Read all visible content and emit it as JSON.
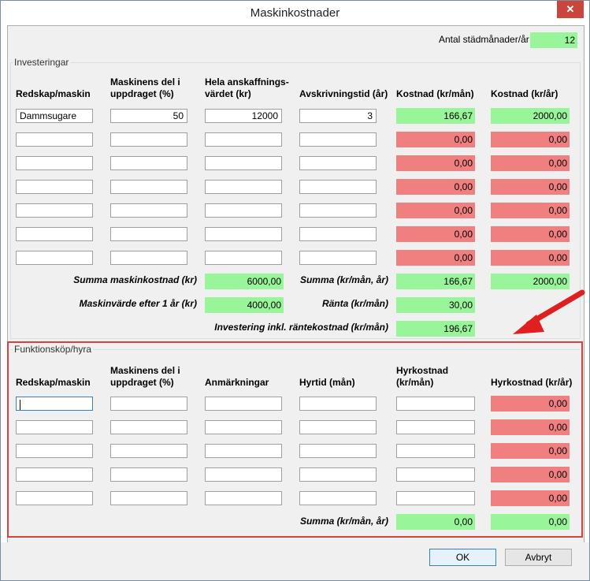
{
  "window": {
    "title": "Maskinkostnader",
    "close_glyph": "✕"
  },
  "months": {
    "label": "Antal städmånader/år",
    "value": "12"
  },
  "investments": {
    "group_title": "Investeringar",
    "headers": [
      "Redskap/maskin",
      "Maskinens del i uppdraget (%)",
      "Hela anskaffnings-värdet (kr)",
      "Avskrivningstid (år)",
      "Kostnad (kr/mån)",
      "Kostnad (kr/år)"
    ],
    "rows": [
      {
        "tool": "Dammsugare",
        "share": "50",
        "value": "12000",
        "years": "3",
        "per_month": "166,67",
        "per_year": "2000,00"
      },
      {
        "tool": "",
        "share": "",
        "value": "",
        "years": "",
        "per_month": "0,00",
        "per_year": "0,00"
      },
      {
        "tool": "",
        "share": "",
        "value": "",
        "years": "",
        "per_month": "0,00",
        "per_year": "0,00"
      },
      {
        "tool": "",
        "share": "",
        "value": "",
        "years": "",
        "per_month": "0,00",
        "per_year": "0,00"
      },
      {
        "tool": "",
        "share": "",
        "value": "",
        "years": "",
        "per_month": "0,00",
        "per_year": "0,00"
      },
      {
        "tool": "",
        "share": "",
        "value": "",
        "years": "",
        "per_month": "0,00",
        "per_year": "0,00"
      },
      {
        "tool": "",
        "share": "",
        "value": "",
        "years": "",
        "per_month": "0,00",
        "per_year": "0,00"
      }
    ],
    "sum_machine_label": "Summa maskinkostnad (kr)",
    "sum_machine_value": "6000,00",
    "sum_label": "Summa (kr/mån, år)",
    "sum_month": "166,67",
    "sum_year": "2000,00",
    "machine_value_label": "Maskinvärde efter 1 år (kr)",
    "machine_value": "4000,00",
    "interest_label": "Ränta (kr/mån)",
    "interest_value": "30,00",
    "total_label": "Investering inkl. räntekostnad (kr/mån)",
    "total_value": "196,67"
  },
  "rental": {
    "group_title": "Funktionsköp/hyra",
    "headers": [
      "Redskap/maskin",
      "Maskinens del i uppdraget (%)",
      "Anmärkningar",
      "Hyrtid (mån)",
      "Hyrkostnad (kr/mån)",
      "Hyrkostnad (kr/år)"
    ],
    "rows": [
      {
        "per_year": "0,00"
      },
      {
        "per_year": "0,00"
      },
      {
        "per_year": "0,00"
      },
      {
        "per_year": "0,00"
      },
      {
        "per_year": "0,00"
      }
    ],
    "sum_label": "Summa (kr/mån, år)",
    "sum_month": "0,00",
    "sum_year": "0,00"
  },
  "buttons": {
    "ok": "OK",
    "cancel": "Avbryt"
  },
  "colors": {
    "ok_green": "#99f599",
    "zero_red": "#f08080",
    "annotation_red": "#d9413b"
  }
}
